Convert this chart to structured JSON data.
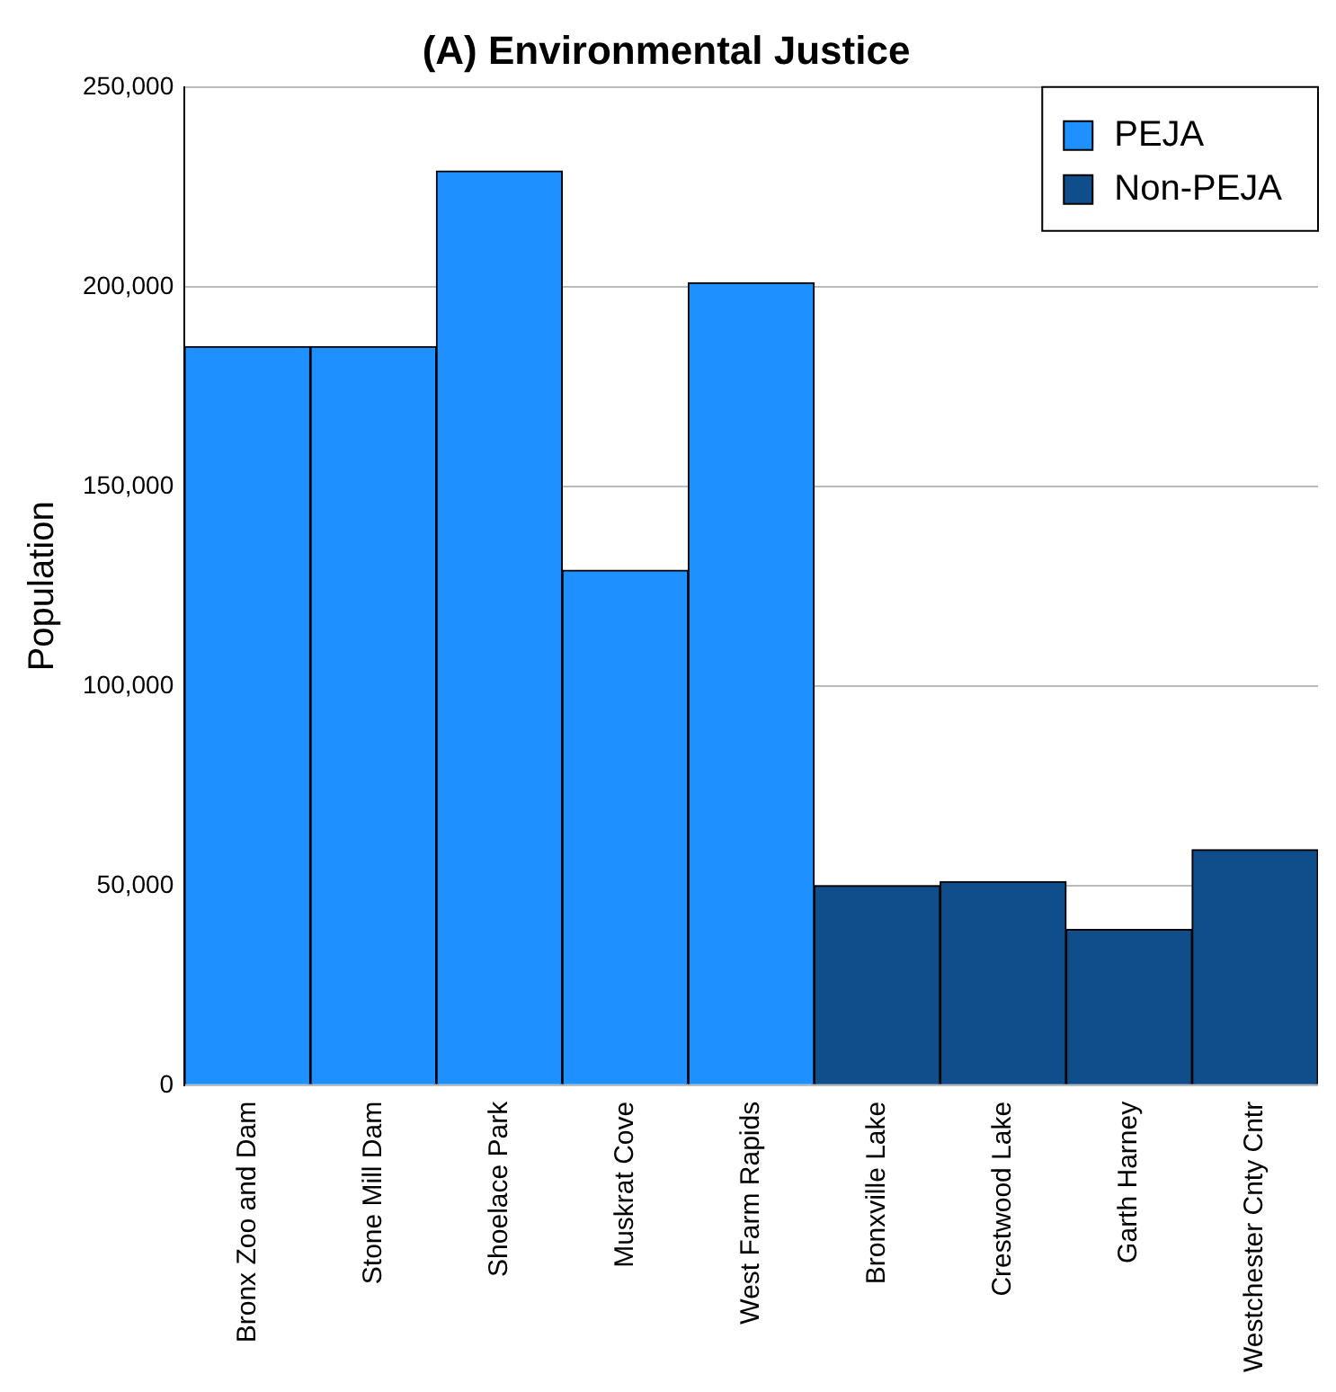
{
  "chart_data": {
    "type": "bar",
    "title": "(A) Environmental Justice",
    "ylabel": "Population",
    "categories": [
      "Bronx Zoo and Dam",
      "Stone Mill Dam",
      "Shoelace Park",
      "Muskrat Cove",
      "West Farm Rapids",
      "Bronxville Lake",
      "Crestwood Lake",
      "Garth Harney",
      "Westchester Cnty Cntr"
    ],
    "series": [
      {
        "name": "PEJA",
        "color": "#1e90ff",
        "values": [
          185000,
          185000,
          229000,
          129000,
          201000,
          null,
          null,
          null,
          null
        ]
      },
      {
        "name": "Non-PEJA",
        "color": "#104e8b",
        "values": [
          null,
          null,
          null,
          null,
          null,
          50000,
          51000,
          39000,
          59000
        ]
      }
    ],
    "ylim": [
      0,
      250000
    ],
    "yticks": [
      {
        "value": 0,
        "label": "0"
      },
      {
        "value": 50000,
        "label": "50,000"
      },
      {
        "value": 100000,
        "label": "100,000"
      },
      {
        "value": 150000,
        "label": "150,000"
      },
      {
        "value": 200000,
        "label": "200,000"
      },
      {
        "value": 250000,
        "label": "250,000"
      }
    ],
    "grid": "y",
    "legend": "top right"
  }
}
